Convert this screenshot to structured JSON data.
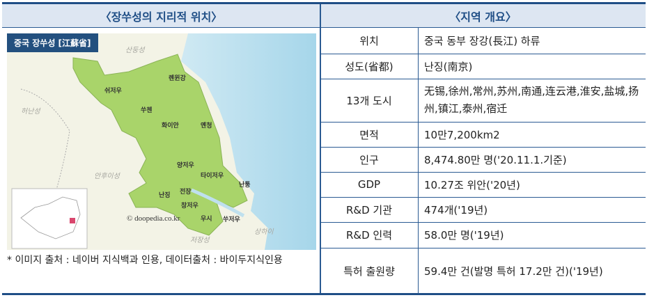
{
  "left": {
    "title": "〈장쑤성의 지리적 위치〉",
    "map_tag": "중국 장쑤성 [江蘇省]",
    "regions": [
      "산둥성",
      "허난성",
      "안후이성",
      "저장성",
      "상하이"
    ],
    "cities": [
      "쉬저우",
      "롄윈강",
      "쑤첸",
      "화이안",
      "옌청",
      "양저우",
      "타이저우",
      "난징",
      "전장",
      "난퉁",
      "창저우",
      "우시",
      "쑤저우"
    ],
    "copyright": "© doopedia.co.kr",
    "caption": "* 이미지 출처 : 네이버 지식백과 인용, 데이터출처  : 바이두지식인용"
  },
  "right": {
    "title": "〈지역 개요〉",
    "rows": [
      {
        "key": "위치",
        "value": "중국 동부 장강(長江) 하류"
      },
      {
        "key": "성도(省都)",
        "value": "난징(南京)"
      },
      {
        "key": "13개 도시",
        "value": "无锡,徐州,常州,苏州,南通,连云港,淮安,盐城,扬州,镇江,泰州,宿迁"
      },
      {
        "key": "면적",
        "value": "10만7,200km2"
      },
      {
        "key": "인구",
        "value": "8,474.80만 명('20.11.1.기준)"
      },
      {
        "key": "GDP",
        "value": "10.27조 위안('20년)"
      },
      {
        "key": "R&D 기관",
        "value": "474개('19년)"
      },
      {
        "key": "R&D 인력",
        "value": "58.0만 명('19년)"
      },
      {
        "key": "특허 출원량",
        "value": "59.4만 건(발명 특허 17.2만 건)('19년)"
      }
    ]
  },
  "colors": {
    "accent": "#1f4e86",
    "header_bg": "#dde6f2",
    "province": "#a9d46a",
    "sea": "#bfe0ee"
  }
}
